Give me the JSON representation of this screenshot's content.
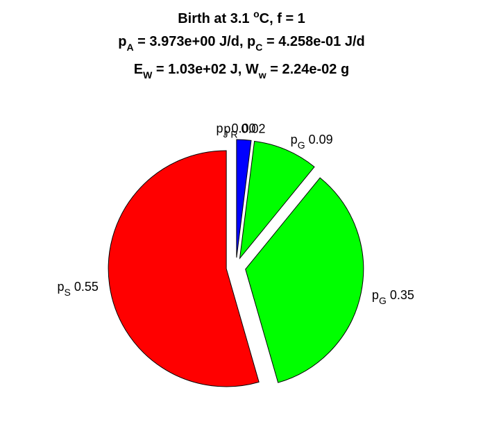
{
  "chart_data": {
    "type": "pie",
    "title_lines": [
      [
        "Birth at 3.1 ",
        {
          "sup": "o"
        },
        "C, f = 1"
      ],
      [
        "p",
        {
          "sub": "A"
        },
        " = 3.973e+00 J/d, p",
        {
          "sub": "C"
        },
        " = 4.258e-01 J/d"
      ],
      [
        "E",
        {
          "sub": "W"
        },
        " = 1.03e+02 J, W",
        {
          "sub": "w"
        },
        " = 2.24e-02 g"
      ]
    ],
    "start_angle_deg": 0,
    "direction": "clockwise",
    "exploded": true,
    "slices": [
      {
        "name": "p_J",
        "base": "p",
        "sub": "J",
        "value": 0.0,
        "value_label": "0.00",
        "color": "#0000ff"
      },
      {
        "name": "p_R",
        "base": "p",
        "sub": "R",
        "value": 0.02,
        "value_label": "0.02",
        "color": "#0000ff"
      },
      {
        "name": "p_G",
        "base": "p",
        "sub": "G",
        "value": 0.09,
        "value_label": "0.09",
        "color": "#00ff00"
      },
      {
        "name": "p_G",
        "base": "p",
        "sub": "G",
        "value": 0.35,
        "value_label": "0.35",
        "color": "#00ff00"
      },
      {
        "name": "p_S",
        "base": "p",
        "sub": "S",
        "value": 0.55,
        "value_label": "0.55",
        "color": "#ff0000"
      }
    ]
  }
}
